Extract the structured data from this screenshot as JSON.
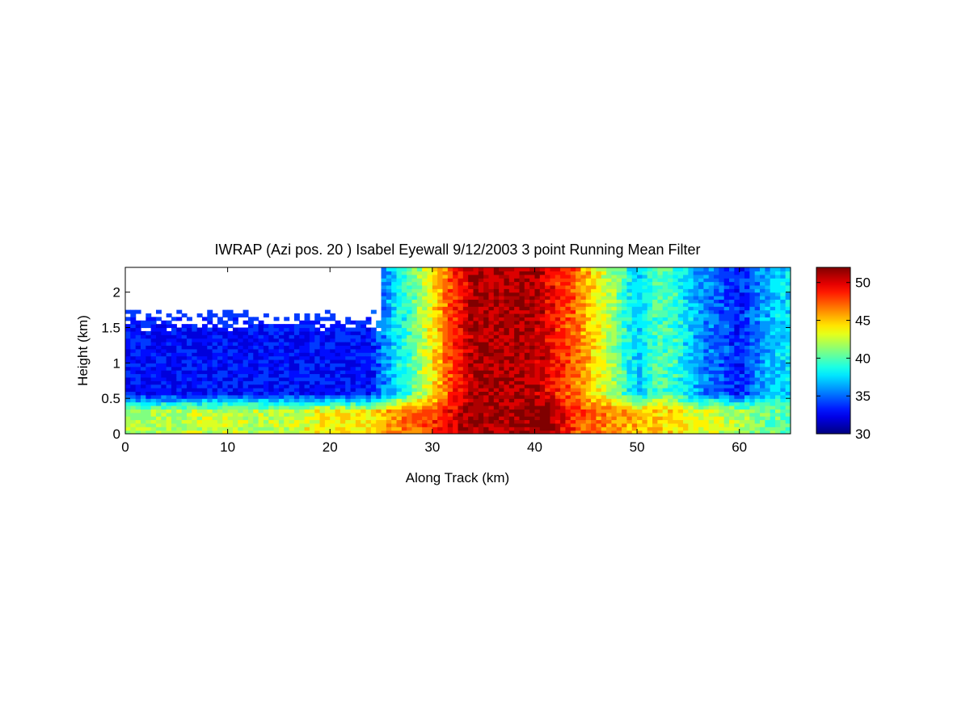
{
  "chart_data": {
    "type": "heatmap",
    "title": "IWRAP (Azi pos. 20 ) Isabel Eyewall 9/12/2003 3 point Running Mean Filter",
    "xlabel": "Along Track (km)",
    "ylabel": "Height (km)",
    "xlim": [
      0,
      65
    ],
    "ylim": [
      0,
      2.35
    ],
    "x_ticks": [
      0,
      10,
      20,
      30,
      40,
      50,
      60
    ],
    "y_ticks": [
      0,
      0.5,
      1,
      1.5,
      2
    ],
    "x_tick_labels": [
      "0",
      "10",
      "20",
      "30",
      "40",
      "50",
      "60"
    ],
    "y_tick_labels": [
      "0",
      "0.5",
      "1",
      "1.5",
      "2"
    ],
    "colorbar": {
      "range": [
        30,
        52
      ],
      "ticks": [
        30,
        35,
        40,
        45,
        50
      ],
      "tick_labels": [
        "30",
        "35",
        "40",
        "45",
        "50"
      ],
      "colormap": "jet"
    },
    "grid": false,
    "no_data_region": {
      "x": [
        0,
        25
      ],
      "y_above": 1.6
    },
    "along_track_column_values": {
      "x": [
        0,
        5,
        10,
        15,
        20,
        24,
        26,
        28,
        30,
        32,
        34,
        36,
        38,
        40,
        42,
        44,
        46,
        48,
        50,
        52,
        54,
        56,
        58,
        60,
        62,
        65
      ],
      "upper_value": [
        33,
        33,
        33,
        33,
        33,
        33,
        37,
        40,
        44,
        48,
        51,
        51,
        51,
        51,
        49,
        47,
        44,
        41,
        37,
        40,
        39,
        36,
        35,
        33,
        36,
        38
      ],
      "near_surface_value": [
        42,
        42,
        43,
        42,
        44,
        44,
        46,
        47,
        48,
        50,
        51,
        51,
        51,
        52,
        51,
        48,
        47,
        46,
        45,
        45,
        44,
        43,
        43,
        42,
        41,
        40
      ]
    }
  }
}
